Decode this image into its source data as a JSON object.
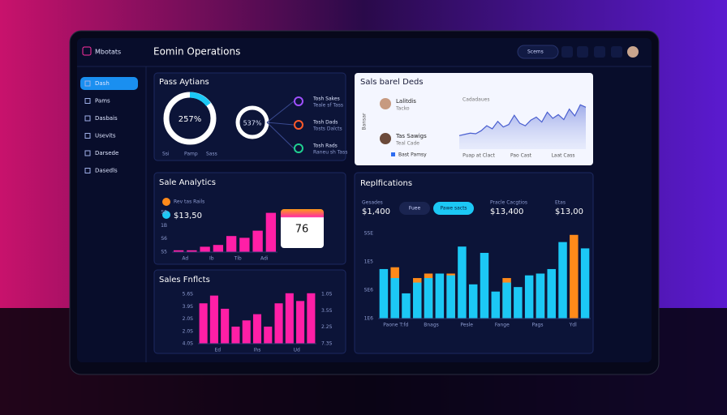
{
  "app": {
    "logo": "Mbotats",
    "title": "Eomin Operations",
    "button": "Scems"
  },
  "sidebar": [
    "Dash",
    "Pams",
    "Dasbais",
    "Usevits",
    "Darsede",
    "Dasedls"
  ],
  "actions": {
    "title": "Pass Aytians",
    "ring_label": "257%",
    "circle_label": "537%",
    "items": [
      [
        "Tosh Sakes",
        "Teale sf Tass"
      ],
      [
        "Tosh Dads",
        "Tosts Dalcts"
      ],
      [
        "Tosh Rads",
        "Raneu sh Tass"
      ]
    ],
    "legend": [
      "Ssi",
      "Pamp",
      "Sass"
    ]
  },
  "deals": {
    "title": "Sals barel Deds",
    "people": [
      [
        "Lalitdis",
        "Tacko"
      ],
      [
        "Tas Sawigs",
        "Teal Cade"
      ]
    ],
    "footer": "Bast Pamsy",
    "y_label": "Bansar",
    "chart_label": "Cadadaues",
    "chart": {
      "type": "area",
      "values": [
        22,
        24,
        26,
        25,
        30,
        38,
        33,
        45,
        36,
        40,
        55,
        42,
        38,
        47,
        52,
        44,
        60,
        50,
        56,
        48,
        65,
        54,
        72,
        68
      ],
      "ylim": [
        0,
        100
      ],
      "x_labels": [
        "Puap at Clact",
        "Pao Cast",
        "Laat Cass"
      ]
    }
  },
  "sales_analytics": {
    "title": "Sale Analytics",
    "legend": "Rev tas Rails",
    "amount": "$13,50",
    "card_value": "76",
    "chart": {
      "type": "bar",
      "color": "#ff1fa6",
      "values": [
        1,
        1,
        3,
        4,
        9,
        8,
        12,
        22
      ],
      "ylim": [
        0,
        25
      ],
      "y_labels": [
        "S8",
        "1B",
        "S6",
        "S5"
      ],
      "x_labels": [
        "Ad",
        "Ib",
        "Tib",
        "Adi"
      ]
    }
  },
  "replications": {
    "title": "Replfications",
    "stats": [
      [
        "Gesades",
        "$1,400"
      ],
      [
        "Pracle Cacgtios",
        "$13,400"
      ],
      [
        "Etas",
        "$13,00"
      ]
    ],
    "pills": [
      "Fuee",
      "Pawe sacts"
    ],
    "chart": {
      "type": "bar",
      "ylim": [
        0,
        100
      ],
      "y_labels": [
        "SSE",
        "1E5",
        "SE6",
        "1E6"
      ],
      "x_labels": [
        "Paone T:fd",
        "Bnags",
        "Pesle",
        "Fange",
        "Pags",
        "Ydl"
      ],
      "series": [
        {
          "color": "#ff8a1a",
          "values": [
            null,
            57,
            null,
            45,
            50,
            null,
            50,
            null,
            null,
            null,
            null,
            45,
            null,
            null,
            50,
            null,
            null,
            93,
            null
          ]
        },
        {
          "color": "#1cc8f5",
          "values": [
            55,
            45,
            28,
            40,
            45,
            50,
            48,
            80,
            38,
            73,
            30,
            40,
            35,
            48,
            50,
            55,
            85,
            null,
            78
          ]
        }
      ]
    }
  },
  "forecasts": {
    "title": "Sales Fnflcts",
    "chart": {
      "type": "bar",
      "color": "#ff1fa6",
      "values": [
        52,
        62,
        45,
        22,
        30,
        38,
        22,
        52,
        65,
        55,
        65
      ],
      "ylim": [
        0,
        70
      ],
      "y_labels": [
        "5.6S",
        "3.9S",
        "2.0S",
        "2.0S",
        "4.0S"
      ],
      "y2_labels": [
        "1.0S",
        "3.5S",
        "2.2S",
        "7.3S"
      ],
      "x_labels": [
        "Ed",
        "Ihs",
        "Ud"
      ]
    }
  }
}
